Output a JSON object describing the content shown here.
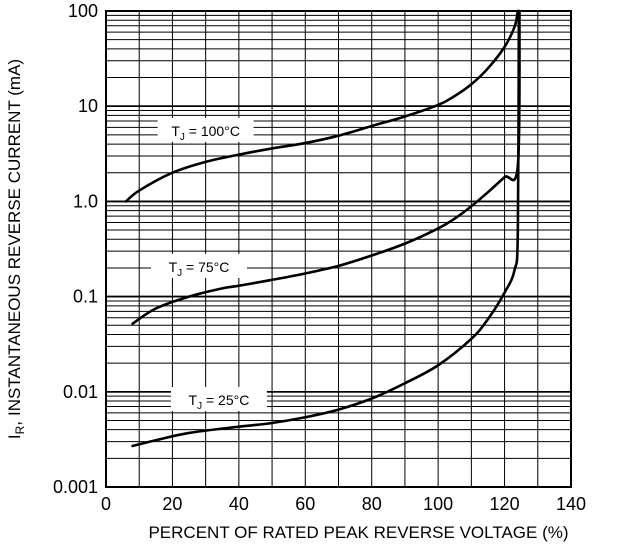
{
  "chart_data": {
    "type": "line",
    "title": "",
    "xlabel": "PERCENT OF RATED PEAK REVERSE VOLTAGE (%)",
    "ylabel": "INSTANTANEOUS REVERSE CURRENT (mA)",
    "ylabel_symbol": "I",
    "ylabel_subscript": "R",
    "ylabel_sep": ",",
    "x_scale": "linear",
    "y_scale": "log",
    "xlim": [
      0,
      140
    ],
    "ylim": [
      0.001,
      100
    ],
    "grid": true,
    "legend": "none",
    "x_ticks": [
      0,
      20,
      40,
      60,
      80,
      100,
      120,
      140
    ],
    "x_tick_labels": [
      "0",
      "20",
      "40",
      "60",
      "80",
      "100",
      "120",
      "140"
    ],
    "y_ticks": [
      0.001,
      0.01,
      0.1,
      1,
      10,
      100
    ],
    "y_tick_labels": [
      "0.001",
      "0.01",
      "0.1",
      "1.0",
      "10",
      "100"
    ],
    "series": [
      {
        "label_prefix": "T",
        "label_sub": "J",
        "label_suffix": " = 100°C",
        "label_at": {
          "x": 30,
          "y": 5.5
        },
        "points": [
          [
            6,
            1.0
          ],
          [
            10,
            1.3
          ],
          [
            20,
            2.0
          ],
          [
            30,
            2.6
          ],
          [
            40,
            3.1
          ],
          [
            50,
            3.6
          ],
          [
            60,
            4.1
          ],
          [
            70,
            4.9
          ],
          [
            80,
            6.2
          ],
          [
            90,
            7.8
          ],
          [
            100,
            10.3
          ],
          [
            105,
            12.8
          ],
          [
            110,
            17
          ],
          [
            115,
            25
          ],
          [
            120,
            42
          ],
          [
            123,
            68
          ],
          [
            124,
            100
          ]
        ]
      },
      {
        "label_prefix": "T",
        "label_sub": "J",
        "label_suffix": " = 75°C",
        "label_at": {
          "x": 28,
          "y": 0.205
        },
        "points": [
          [
            8,
            0.052
          ],
          [
            15,
            0.075
          ],
          [
            25,
            0.1
          ],
          [
            35,
            0.122
          ],
          [
            40,
            0.13
          ],
          [
            50,
            0.15
          ],
          [
            60,
            0.175
          ],
          [
            70,
            0.21
          ],
          [
            80,
            0.27
          ],
          [
            90,
            0.36
          ],
          [
            100,
            0.52
          ],
          [
            105,
            0.66
          ],
          [
            110,
            0.89
          ],
          [
            115,
            1.25
          ],
          [
            120,
            1.8
          ],
          [
            124,
            2.4
          ],
          [
            124.5,
            100
          ]
        ]
      },
      {
        "label_prefix": "T",
        "label_sub": "J",
        "label_suffix": " = 25°C",
        "label_at": {
          "x": 34,
          "y": 0.0082
        },
        "points": [
          [
            8,
            0.0027
          ],
          [
            15,
            0.0031
          ],
          [
            25,
            0.0037
          ],
          [
            40,
            0.0043
          ],
          [
            50,
            0.0047
          ],
          [
            60,
            0.0054
          ],
          [
            70,
            0.0065
          ],
          [
            80,
            0.0085
          ],
          [
            90,
            0.0123
          ],
          [
            100,
            0.019
          ],
          [
            110,
            0.036
          ],
          [
            115,
            0.058
          ],
          [
            120,
            0.11
          ],
          [
            123,
            0.19
          ],
          [
            124,
            0.5
          ],
          [
            124.3,
            100
          ]
        ]
      }
    ]
  }
}
